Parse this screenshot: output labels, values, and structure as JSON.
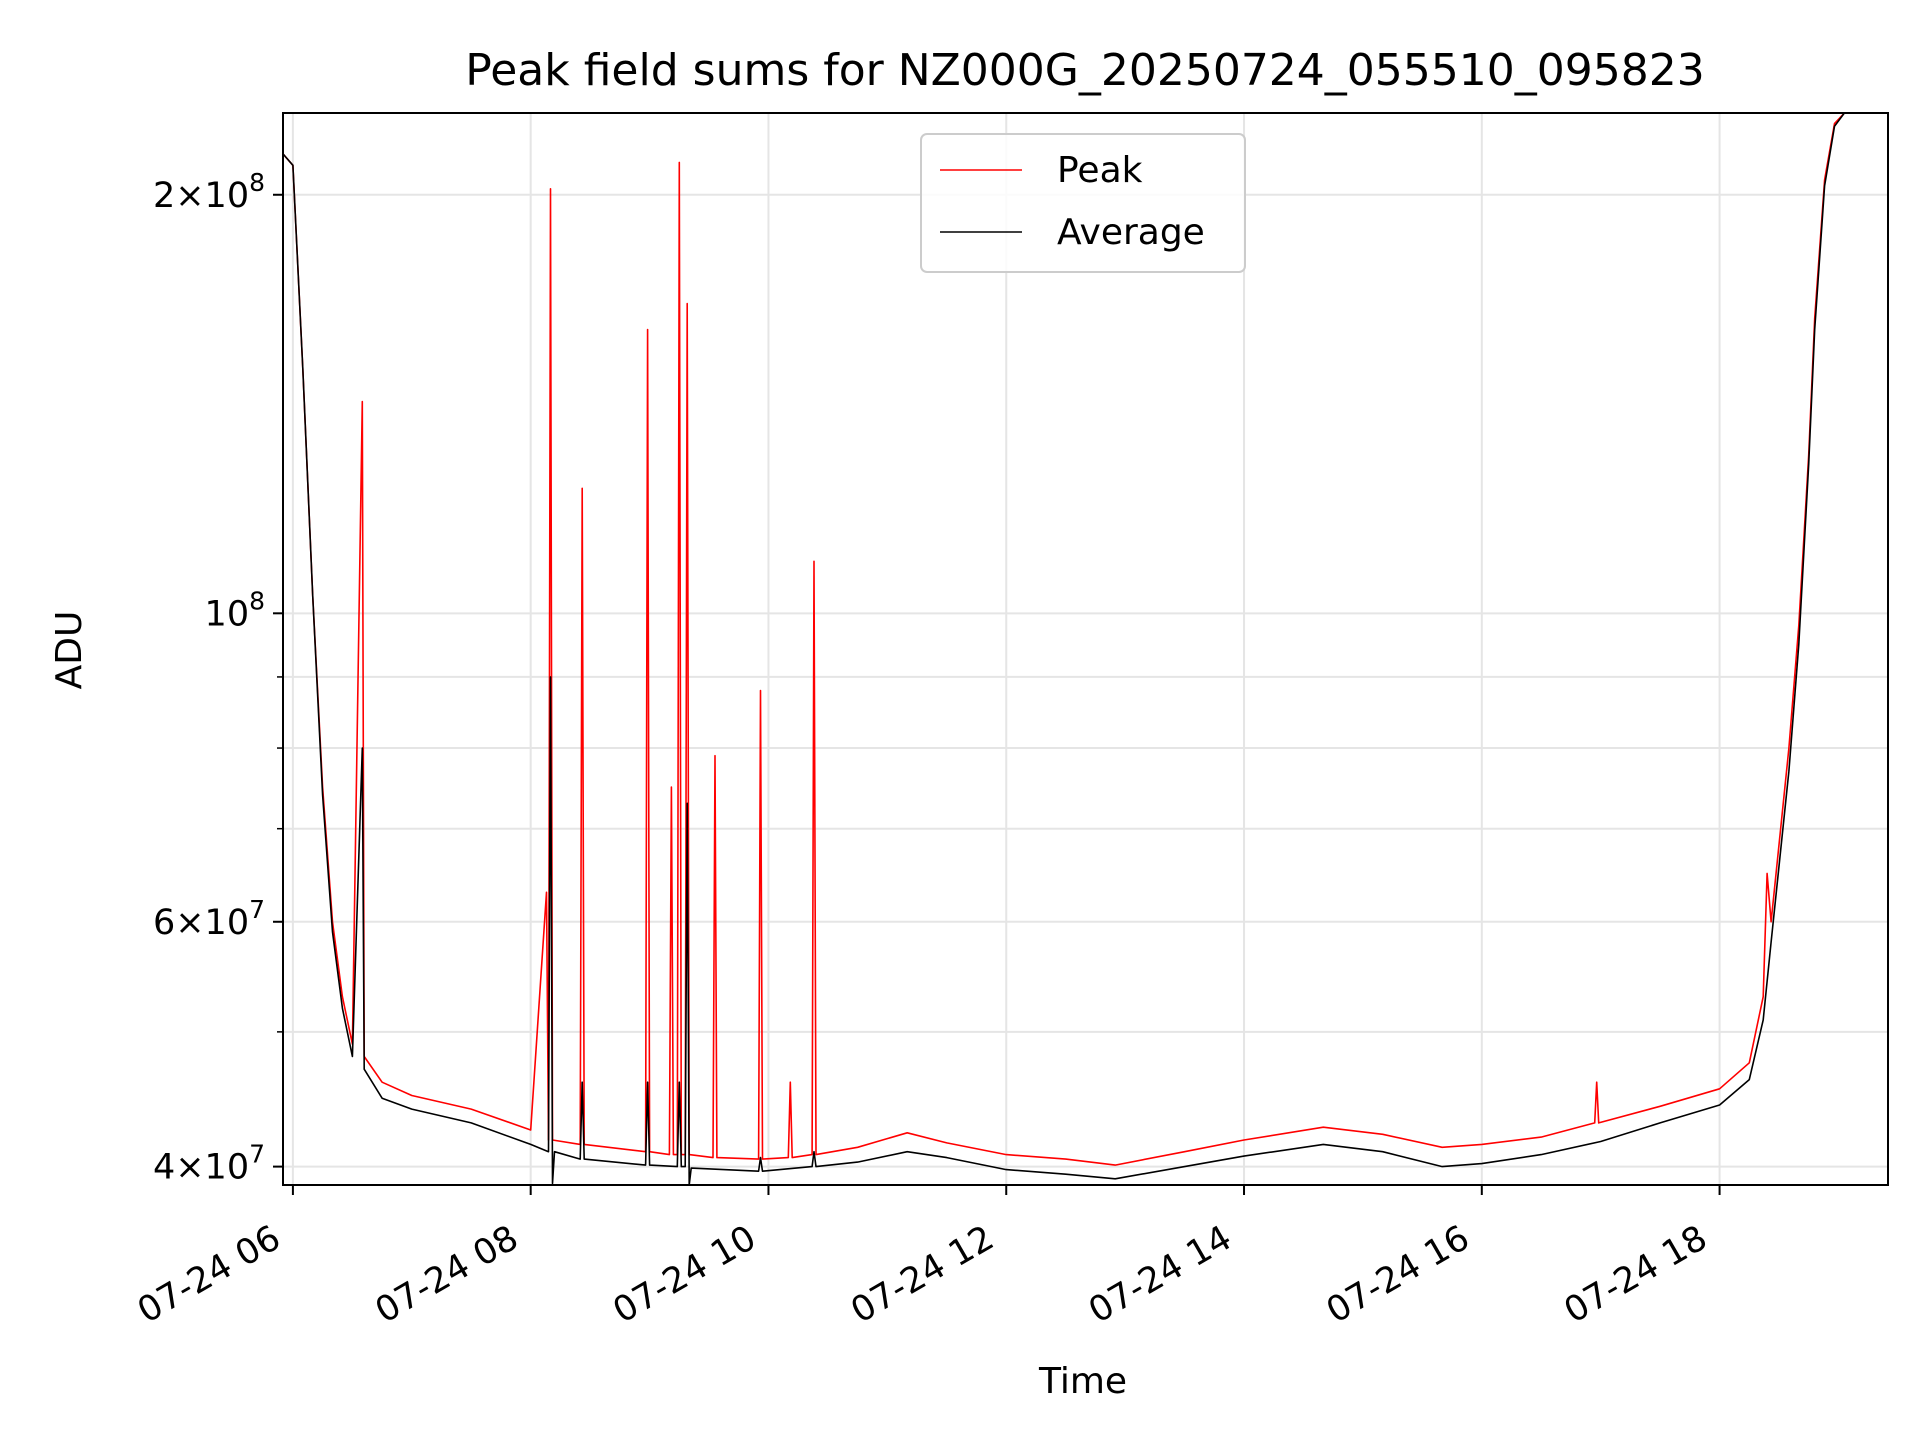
{
  "chart_data": {
    "type": "line",
    "title": "Peak field sums for NZ000G_20250724_055510_095823",
    "xlabel": "Time",
    "ylabel": "ADU",
    "xscale": "time",
    "yscale": "log",
    "xlim": [
      "2025-07-24 05:55",
      "2025-07-24 19:25"
    ],
    "ylim": [
      38800000,
      229000000
    ],
    "grid": true,
    "legend_position": "top-center",
    "x_ticks": [
      {
        "label": "07-24 06",
        "value": "2025-07-24 06:00"
      },
      {
        "label": "07-24 08",
        "value": "2025-07-24 08:00"
      },
      {
        "label": "07-24 10",
        "value": "2025-07-24 10:00"
      },
      {
        "label": "07-24 12",
        "value": "2025-07-24 12:00"
      },
      {
        "label": "07-24 14",
        "value": "2025-07-24 14:00"
      },
      {
        "label": "07-24 16",
        "value": "2025-07-24 16:00"
      },
      {
        "label": "07-24 18",
        "value": "2025-07-24 18:00"
      }
    ],
    "y_ticks": [
      {
        "value": 40000000,
        "base": "4",
        "exp": "7"
      },
      {
        "value": 60000000,
        "base": "6",
        "exp": "7"
      },
      {
        "value": 100000000,
        "base": "",
        "exp": "8"
      },
      {
        "value": 200000000,
        "base": "2",
        "exp": "8"
      }
    ],
    "y_minor_ticks": [
      50000000,
      70000000,
      80000000,
      90000000
    ],
    "series": [
      {
        "name": "Peak",
        "color": "#ff0000",
        "points": [
          [
            "2025-07-24 05:55",
            214000000
          ],
          [
            "2025-07-24 06:00",
            210000000
          ],
          [
            "2025-07-24 06:05",
            150000000
          ],
          [
            "2025-07-24 06:10",
            103000000
          ],
          [
            "2025-07-24 06:15",
            75000000
          ],
          [
            "2025-07-24 06:20",
            60000000
          ],
          [
            "2025-07-24 06:25",
            53000000
          ],
          [
            "2025-07-24 06:30",
            49000000
          ],
          [
            "2025-07-24 06:35",
            142000000
          ],
          [
            "2025-07-24 06:36",
            48000000
          ],
          [
            "2025-07-24 06:45",
            46000000
          ],
          [
            "2025-07-24 07:00",
            45000000
          ],
          [
            "2025-07-24 07:30",
            44000000
          ],
          [
            "2025-07-24 08:00",
            42500000
          ],
          [
            "2025-07-24 08:08",
            63000000
          ],
          [
            "2025-07-24 08:09",
            41800000
          ],
          [
            "2025-07-24 08:10",
            202000000
          ],
          [
            "2025-07-24 08:11",
            41800000
          ],
          [
            "2025-07-24 08:25",
            41500000
          ],
          [
            "2025-07-24 08:26",
            123000000
          ],
          [
            "2025-07-24 08:27",
            41500000
          ],
          [
            "2025-07-24 08:58",
            41000000
          ],
          [
            "2025-07-24 08:59",
            160000000
          ],
          [
            "2025-07-24 09:00",
            41000000
          ],
          [
            "2025-07-24 09:10",
            40800000
          ],
          [
            "2025-07-24 09:11",
            75000000
          ],
          [
            "2025-07-24 09:12",
            40800000
          ],
          [
            "2025-07-24 09:14",
            40800000
          ],
          [
            "2025-07-24 09:15",
            211000000
          ],
          [
            "2025-07-24 09:16",
            40800000
          ],
          [
            "2025-07-24 09:18",
            40800000
          ],
          [
            "2025-07-24 09:19",
            167000000
          ],
          [
            "2025-07-24 09:20",
            40800000
          ],
          [
            "2025-07-24 09:32",
            40600000
          ],
          [
            "2025-07-24 09:33",
            79000000
          ],
          [
            "2025-07-24 09:34",
            40600000
          ],
          [
            "2025-07-24 09:55",
            40500000
          ],
          [
            "2025-07-24 09:56",
            88000000
          ],
          [
            "2025-07-24 09:57",
            40500000
          ],
          [
            "2025-07-24 10:10",
            40600000
          ],
          [
            "2025-07-24 10:11",
            46000000
          ],
          [
            "2025-07-24 10:12",
            40600000
          ],
          [
            "2025-07-24 10:22",
            40800000
          ],
          [
            "2025-07-24 10:23",
            109000000
          ],
          [
            "2025-07-24 10:24",
            40800000
          ],
          [
            "2025-07-24 10:45",
            41300000
          ],
          [
            "2025-07-24 11:10",
            42300000
          ],
          [
            "2025-07-24 11:30",
            41600000
          ],
          [
            "2025-07-24 12:00",
            40800000
          ],
          [
            "2025-07-24 12:30",
            40500000
          ],
          [
            "2025-07-24 12:55",
            40100000
          ],
          [
            "2025-07-24 13:30",
            41000000
          ],
          [
            "2025-07-24 14:00",
            41800000
          ],
          [
            "2025-07-24 14:40",
            42700000
          ],
          [
            "2025-07-24 15:10",
            42200000
          ],
          [
            "2025-07-24 15:40",
            41300000
          ],
          [
            "2025-07-24 16:00",
            41500000
          ],
          [
            "2025-07-24 16:30",
            42000000
          ],
          [
            "2025-07-24 16:57",
            43000000
          ],
          [
            "2025-07-24 16:58",
            46000000
          ],
          [
            "2025-07-24 16:59",
            43000000
          ],
          [
            "2025-07-24 17:30",
            44200000
          ],
          [
            "2025-07-24 18:00",
            45500000
          ],
          [
            "2025-07-24 18:15",
            47500000
          ],
          [
            "2025-07-24 18:22",
            53000000
          ],
          [
            "2025-07-24 18:24",
            65000000
          ],
          [
            "2025-07-24 18:26",
            60000000
          ],
          [
            "2025-07-24 18:35",
            80000000
          ],
          [
            "2025-07-24 18:40",
            98000000
          ],
          [
            "2025-07-24 18:45",
            130000000
          ],
          [
            "2025-07-24 18:48",
            163000000
          ],
          [
            "2025-07-24 18:53",
            205000000
          ],
          [
            "2025-07-24 18:58",
            225000000
          ],
          [
            "2025-07-24 19:03",
            229000000
          ],
          [
            "2025-07-24 19:25",
            229000000
          ]
        ]
      },
      {
        "name": "Average",
        "color": "#000000",
        "points": [
          [
            "2025-07-24 05:55",
            214000000
          ],
          [
            "2025-07-24 06:00",
            210000000
          ],
          [
            "2025-07-24 06:05",
            150000000
          ],
          [
            "2025-07-24 06:10",
            103000000
          ],
          [
            "2025-07-24 06:15",
            74000000
          ],
          [
            "2025-07-24 06:20",
            59000000
          ],
          [
            "2025-07-24 06:25",
            52000000
          ],
          [
            "2025-07-24 06:30",
            48000000
          ],
          [
            "2025-07-24 06:35",
            80000000
          ],
          [
            "2025-07-24 06:36",
            47000000
          ],
          [
            "2025-07-24 06:45",
            44800000
          ],
          [
            "2025-07-24 07:00",
            44000000
          ],
          [
            "2025-07-24 07:30",
            43000000
          ],
          [
            "2025-07-24 08:00",
            41500000
          ],
          [
            "2025-07-24 08:09",
            41000000
          ],
          [
            "2025-07-24 08:10",
            90000000
          ],
          [
            "2025-07-24 08:11",
            38900000
          ],
          [
            "2025-07-24 08:12",
            41000000
          ],
          [
            "2025-07-24 08:25",
            40500000
          ],
          [
            "2025-07-24 08:26",
            46000000
          ],
          [
            "2025-07-24 08:27",
            40500000
          ],
          [
            "2025-07-24 08:58",
            40100000
          ],
          [
            "2025-07-24 08:59",
            46000000
          ],
          [
            "2025-07-24 09:00",
            40100000
          ],
          [
            "2025-07-24 09:14",
            40000000
          ],
          [
            "2025-07-24 09:15",
            46000000
          ],
          [
            "2025-07-24 09:16",
            40000000
          ],
          [
            "2025-07-24 09:18",
            40000000
          ],
          [
            "2025-07-24 09:19",
            73000000
          ],
          [
            "2025-07-24 09:20",
            38800000
          ],
          [
            "2025-07-24 09:21",
            39900000
          ],
          [
            "2025-07-24 09:55",
            39700000
          ],
          [
            "2025-07-24 09:56",
            40600000
          ],
          [
            "2025-07-24 09:57",
            39700000
          ],
          [
            "2025-07-24 10:22",
            40000000
          ],
          [
            "2025-07-24 10:23",
            41000000
          ],
          [
            "2025-07-24 10:24",
            40000000
          ],
          [
            "2025-07-24 10:45",
            40300000
          ],
          [
            "2025-07-24 11:10",
            41000000
          ],
          [
            "2025-07-24 11:30",
            40600000
          ],
          [
            "2025-07-24 12:00",
            39800000
          ],
          [
            "2025-07-24 12:30",
            39500000
          ],
          [
            "2025-07-24 12:55",
            39200000
          ],
          [
            "2025-07-24 13:30",
            40000000
          ],
          [
            "2025-07-24 14:00",
            40700000
          ],
          [
            "2025-07-24 14:40",
            41500000
          ],
          [
            "2025-07-24 15:10",
            41000000
          ],
          [
            "2025-07-24 15:40",
            40000000
          ],
          [
            "2025-07-24 16:00",
            40200000
          ],
          [
            "2025-07-24 16:30",
            40800000
          ],
          [
            "2025-07-24 17:00",
            41700000
          ],
          [
            "2025-07-24 17:30",
            43000000
          ],
          [
            "2025-07-24 18:00",
            44300000
          ],
          [
            "2025-07-24 18:15",
            46200000
          ],
          [
            "2025-07-24 18:22",
            51000000
          ],
          [
            "2025-07-24 18:26",
            58000000
          ],
          [
            "2025-07-24 18:35",
            77000000
          ],
          [
            "2025-07-24 18:40",
            95000000
          ],
          [
            "2025-07-24 18:45",
            128000000
          ],
          [
            "2025-07-24 18:48",
            160000000
          ],
          [
            "2025-07-24 18:53",
            203000000
          ],
          [
            "2025-07-24 18:58",
            224000000
          ],
          [
            "2025-07-24 19:03",
            229000000
          ],
          [
            "2025-07-24 19:25",
            229000000
          ]
        ]
      }
    ]
  }
}
